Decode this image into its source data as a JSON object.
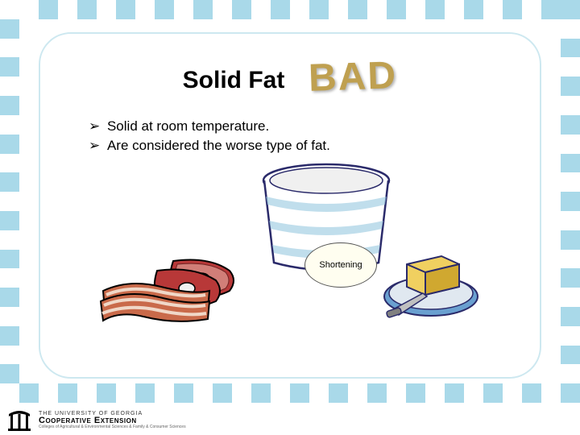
{
  "border": {
    "colorA": "#a9d9e9",
    "colorB": "#ffffff",
    "squareSize": 24
  },
  "panel": {
    "borderColor": "#cde8f0",
    "radius": 40
  },
  "title": "Solid Fat",
  "accent": {
    "text": "BAD",
    "color": "#bfa050"
  },
  "bullets": [
    "Solid at room temperature.",
    "Are considered the worse type of fat."
  ],
  "shorteningLabel": "Shortening",
  "illustrations": {
    "tub": {
      "outline": "#2a2a6a",
      "fill": "#ffffff",
      "rimStripe": "#96c8e0"
    },
    "meat": {
      "bacon": "#c96a4a",
      "baconFat": "#f0d8c8",
      "steak": "#b83838",
      "steakFat": "#f8e8d8",
      "bone": "#f0f0f0",
      "outline": "#000000"
    },
    "butter": {
      "plateRim": "#6aa0d0",
      "plate": "#e0e8f0",
      "butter": "#f0d060",
      "butterShadow": "#d0a830",
      "knife": "#808080",
      "outline": "#2a2a6a"
    }
  },
  "footer": {
    "line1": "THE UNIVERSITY OF GEORGIA",
    "line2": "Cooperative Extension",
    "line3": "Colleges of Agricultural & Environmental Sciences & Family & Consumer Sciences"
  }
}
